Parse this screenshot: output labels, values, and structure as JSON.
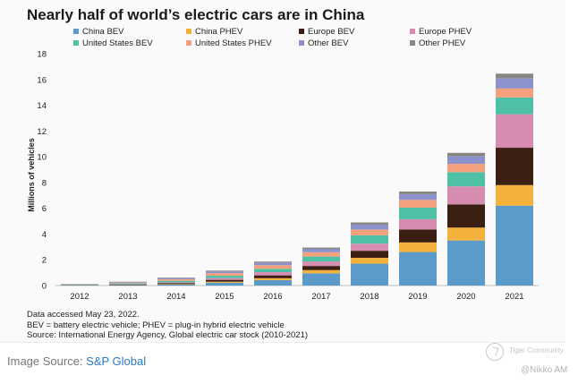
{
  "chart_data": {
    "type": "bar",
    "stacked": true,
    "title": "Nearly half of world’s electric cars are in China",
    "ylabel": "Millions of vehicles",
    "xlabel": "",
    "ylim": [
      0,
      18
    ],
    "yticks": [
      0,
      2,
      4,
      6,
      8,
      10,
      12,
      14,
      16,
      18
    ],
    "grid": false,
    "legend_position": "top",
    "categories": [
      "2012",
      "2013",
      "2014",
      "2015",
      "2016",
      "2017",
      "2018",
      "2019",
      "2020",
      "2021"
    ],
    "series": [
      {
        "name": "China BEV",
        "color": "#5b9bc9",
        "values": [
          0.02,
          0.03,
          0.08,
          0.22,
          0.42,
          0.95,
          1.7,
          2.6,
          3.5,
          6.2
        ]
      },
      {
        "name": "China PHEV",
        "color": "#f4b13c",
        "values": [
          0.0,
          0.01,
          0.03,
          0.08,
          0.15,
          0.25,
          0.45,
          0.75,
          1.0,
          1.6
        ]
      },
      {
        "name": "Europe BEV",
        "color": "#3c1f13",
        "values": [
          0.02,
          0.04,
          0.08,
          0.14,
          0.22,
          0.32,
          0.55,
          1.0,
          1.8,
          2.9
        ]
      },
      {
        "name": "Europe PHEV",
        "color": "#d68cb0",
        "values": [
          0.01,
          0.02,
          0.06,
          0.14,
          0.25,
          0.35,
          0.55,
          0.8,
          1.4,
          2.6
        ]
      },
      {
        "name": "United States BEV",
        "color": "#4dc0a6",
        "values": [
          0.03,
          0.07,
          0.12,
          0.18,
          0.26,
          0.38,
          0.65,
          0.9,
          1.1,
          1.3
        ]
      },
      {
        "name": "United States PHEV",
        "color": "#f3a07c",
        "values": [
          0.02,
          0.06,
          0.12,
          0.2,
          0.28,
          0.34,
          0.45,
          0.6,
          0.65,
          0.7
        ]
      },
      {
        "name": "Other BEV",
        "color": "#8c93cc",
        "values": [
          0.02,
          0.05,
          0.09,
          0.14,
          0.2,
          0.26,
          0.38,
          0.45,
          0.6,
          0.8
        ]
      },
      {
        "name": "Other PHEV",
        "color": "#878780",
        "values": [
          0.01,
          0.02,
          0.04,
          0.06,
          0.08,
          0.1,
          0.17,
          0.2,
          0.25,
          0.35
        ]
      }
    ]
  },
  "notes": {
    "line1": "Data accessed May 23, 2022.",
    "line2": "BEV = battery electric vehicle; PHEV = plug-in hybrid electric vehicle",
    "line3": "Source: International Energy Agency, Global electric car stock (2010-2021)"
  },
  "image_source": {
    "label": "Image Source: ",
    "link_text": "S&P Global"
  },
  "watermark": {
    "logo_text": "Tiger Community",
    "credit": "@Nikko AM"
  }
}
